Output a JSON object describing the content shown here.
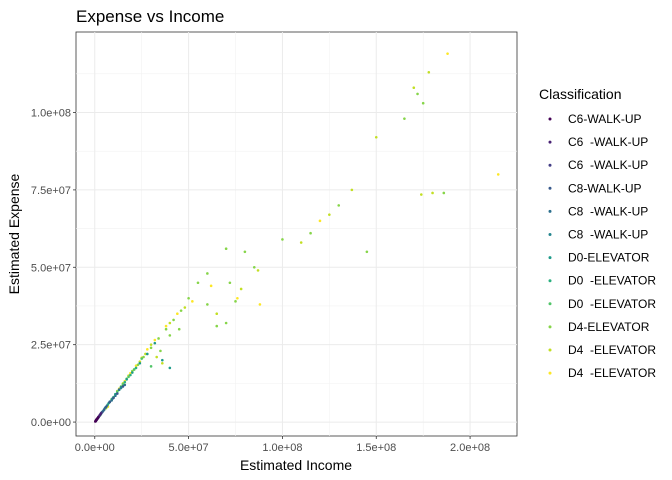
{
  "chart_data": {
    "type": "scatter",
    "title": "Expense vs Income",
    "xlabel": "Estimated Income",
    "ylabel": "Estimated Expense",
    "xlim": [
      -10000000,
      225000000
    ],
    "ylim": [
      -4500000,
      126000000
    ],
    "x_ticks": [
      0,
      50000000,
      100000000,
      150000000,
      200000000
    ],
    "x_tick_labels": [
      "0.0e+00",
      "5.0e+07",
      "1.0e+08",
      "1.5e+08",
      "2.0e+08"
    ],
    "y_ticks": [
      0,
      25000000,
      50000000,
      75000000,
      100000000
    ],
    "y_tick_labels": [
      "0.0e+00",
      "2.5e+07",
      "5.0e+07",
      "7.5e+07",
      "1.0e+08"
    ],
    "grid": true,
    "legend_title": "Classification",
    "legend_position": "right",
    "series": [
      {
        "name": "C6-WALK-UP",
        "color": "#440154",
        "points": [
          [
            300000,
            200000
          ],
          [
            600000,
            500000
          ],
          [
            900000,
            700000
          ],
          [
            1200000,
            1000000
          ],
          [
            1500000,
            1200000
          ],
          [
            500000,
            300000
          ],
          [
            800000,
            700000
          ],
          [
            1800000,
            1500000
          ]
        ]
      },
      {
        "name": "C6  -WALK-UP",
        "color": "#482173",
        "points": [
          [
            400000,
            300000
          ],
          [
            700000,
            600000
          ],
          [
            1000000,
            900000
          ],
          [
            1400000,
            1100000
          ],
          [
            2000000,
            1700000
          ],
          [
            2600000,
            2200000
          ],
          [
            3200000,
            2700000
          ]
        ]
      },
      {
        "name": "C6  -WALK-UP",
        "color": "#433e85",
        "points": [
          [
            600000,
            400000
          ],
          [
            1100000,
            800000
          ],
          [
            1600000,
            1300000
          ],
          [
            2200000,
            1800000
          ],
          [
            2800000,
            2300000
          ],
          [
            3500000,
            3000000
          ]
        ]
      },
      {
        "name": "C8-WALK-UP",
        "color": "#38598c",
        "points": [
          [
            1000000,
            800000
          ],
          [
            2000000,
            1600000
          ],
          [
            3000000,
            2500000
          ],
          [
            4000000,
            3200000
          ],
          [
            5000000,
            4100000
          ],
          [
            6000000,
            4900000
          ],
          [
            8000000,
            6500000
          ],
          [
            10000000,
            7800000
          ],
          [
            12000000,
            9200000
          ],
          [
            15000000,
            11500000
          ]
        ]
      },
      {
        "name": "C8  -WALK-UP",
        "color": "#2d708e",
        "points": [
          [
            2500000,
            2000000
          ],
          [
            4500000,
            3600000
          ],
          [
            6500000,
            5300000
          ],
          [
            9000000,
            7000000
          ],
          [
            11000000,
            8500000
          ],
          [
            13000000,
            10500000
          ],
          [
            16000000,
            12000000
          ]
        ]
      },
      {
        "name": "C8  -WALK-UP",
        "color": "#25858e",
        "points": [
          [
            3500000,
            2800000
          ],
          [
            5500000,
            4600000
          ],
          [
            7500000,
            6200000
          ],
          [
            9500000,
            7600000
          ],
          [
            14000000,
            11000000
          ]
        ]
      },
      {
        "name": "D0-ELEVATOR",
        "color": "#1e9b8a",
        "points": [
          [
            2000000,
            1500000
          ],
          [
            5000000,
            4000000
          ],
          [
            8000000,
            6600000
          ],
          [
            11000000,
            9000000
          ],
          [
            14000000,
            11300000
          ],
          [
            17000000,
            13800000
          ],
          [
            20000000,
            16000000
          ],
          [
            24000000,
            19000000
          ],
          [
            28000000,
            22000000
          ],
          [
            32000000,
            25500000
          ],
          [
            36000000,
            20000000
          ],
          [
            40000000,
            17500000
          ]
        ]
      },
      {
        "name": "D0  -ELEVATOR",
        "color": "#2ab07f",
        "points": [
          [
            4000000,
            3300000
          ],
          [
            7000000,
            5700000
          ],
          [
            10000000,
            8100000
          ],
          [
            13000000,
            10400000
          ],
          [
            16000000,
            12900000
          ],
          [
            19000000,
            15200000
          ],
          [
            22000000,
            17500000
          ]
        ]
      },
      {
        "name": "D0  -ELEVATOR",
        "color": "#52c569",
        "points": [
          [
            3000000,
            2300000
          ],
          [
            6000000,
            4800000
          ],
          [
            9000000,
            7400000
          ],
          [
            12000000,
            9800000
          ],
          [
            15000000,
            12200000
          ],
          [
            18000000,
            14600000
          ],
          [
            21000000,
            17000000
          ],
          [
            25000000,
            20500000
          ],
          [
            30000000,
            18000000
          ]
        ]
      },
      {
        "name": "D4-ELEVATOR",
        "color": "#86d549",
        "points": [
          [
            5000000,
            4000000
          ],
          [
            8000000,
            6500000
          ],
          [
            11000000,
            9000000
          ],
          [
            14000000,
            11500000
          ],
          [
            17000000,
            14000000
          ],
          [
            20000000,
            16500000
          ],
          [
            23000000,
            18500000
          ],
          [
            26000000,
            21000000
          ],
          [
            30000000,
            24000000
          ],
          [
            34000000,
            27000000
          ],
          [
            38000000,
            30000000
          ],
          [
            42000000,
            33000000
          ],
          [
            46000000,
            36000000
          ],
          [
            50000000,
            40000000
          ],
          [
            55000000,
            45000000
          ],
          [
            60000000,
            48000000
          ],
          [
            70000000,
            56000000
          ],
          [
            72000000,
            45000000
          ],
          [
            75000000,
            39000000
          ],
          [
            80000000,
            55000000
          ],
          [
            85000000,
            50000000
          ],
          [
            100000000,
            59000000
          ],
          [
            115000000,
            61000000
          ],
          [
            130000000,
            70000000
          ],
          [
            145000000,
            55000000
          ],
          [
            165000000,
            98000000
          ],
          [
            172000000,
            106000000
          ],
          [
            175000000,
            103000000
          ],
          [
            186000000,
            74000000
          ],
          [
            60000000,
            38000000
          ],
          [
            65000000,
            31000000
          ],
          [
            70000000,
            32000000
          ],
          [
            40000000,
            28000000
          ],
          [
            45000000,
            30000000
          ],
          [
            35000000,
            23000000
          ]
        ]
      },
      {
        "name": "D4  -ELEVATOR",
        "color": "#c2df23",
        "points": [
          [
            6000000,
            4500000
          ],
          [
            9000000,
            7200000
          ],
          [
            12000000,
            10000000
          ],
          [
            15000000,
            12500000
          ],
          [
            18000000,
            15000000
          ],
          [
            21000000,
            17000000
          ],
          [
            24000000,
            19500000
          ],
          [
            27000000,
            22000000
          ],
          [
            30000000,
            25000000
          ],
          [
            33000000,
            21000000
          ],
          [
            36000000,
            19000000
          ],
          [
            40000000,
            32000000
          ],
          [
            48000000,
            37000000
          ],
          [
            65000000,
            35000000
          ],
          [
            78000000,
            43000000
          ],
          [
            87000000,
            49000000
          ],
          [
            110000000,
            58000000
          ],
          [
            125000000,
            67000000
          ],
          [
            137000000,
            75000000
          ],
          [
            150000000,
            92000000
          ],
          [
            170000000,
            108000000
          ],
          [
            178000000,
            113000000
          ],
          [
            180000000,
            74000000
          ],
          [
            174000000,
            73500000
          ]
        ]
      },
      {
        "name": "D4  -ELEVATOR",
        "color": "#fde725",
        "points": [
          [
            7000000,
            5000000
          ],
          [
            10000000,
            8000000
          ],
          [
            13000000,
            10800000
          ],
          [
            16000000,
            13200000
          ],
          [
            19000000,
            15800000
          ],
          [
            22000000,
            18200000
          ],
          [
            25000000,
            20800000
          ],
          [
            28000000,
            23500000
          ],
          [
            32000000,
            26500000
          ],
          [
            38000000,
            31000000
          ],
          [
            44000000,
            35000000
          ],
          [
            52000000,
            39000000
          ],
          [
            62000000,
            44000000
          ],
          [
            76000000,
            40000000
          ],
          [
            88000000,
            38000000
          ],
          [
            120000000,
            65000000
          ],
          [
            188000000,
            119000000
          ],
          [
            215000000,
            80000000
          ]
        ]
      }
    ]
  }
}
